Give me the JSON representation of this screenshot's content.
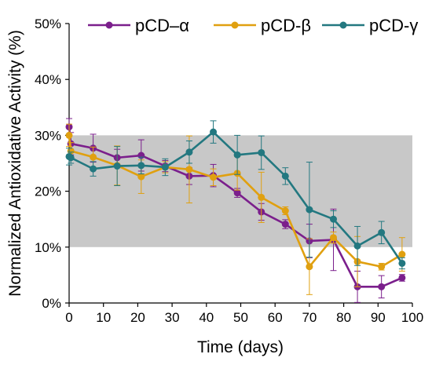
{
  "chart_data": {
    "type": "line",
    "title": "",
    "xlabel": "Time (days)",
    "ylabel": "Normalized Antioxidative Activity (%)",
    "xlim": [
      0,
      100
    ],
    "ylim": [
      0,
      50
    ],
    "x_ticks": [
      0,
      10,
      20,
      30,
      40,
      50,
      60,
      70,
      80,
      90,
      100
    ],
    "y_ticks": [
      0,
      10,
      20,
      30,
      40,
      50
    ],
    "x_tick_labels": [
      "0",
      "10",
      "20",
      "30",
      "40",
      "50",
      "60",
      "70",
      "80",
      "90",
      "100"
    ],
    "y_tick_labels": [
      "0%",
      "10%",
      "20%",
      "30%",
      "40%",
      "50%"
    ],
    "shaded_band": {
      "y0": 10,
      "y1": 30,
      "color": "#c8c8c8"
    },
    "grid": false,
    "legend_position": "top",
    "series": [
      {
        "name": "pCD–α",
        "color": "#7b1f8c",
        "points": [
          {
            "x": 0,
            "y": 31.5,
            "err": 1.5
          },
          {
            "x": 0.5,
            "y": 28.5,
            "err": 2.0
          },
          {
            "x": 7,
            "y": 27.7,
            "err": 2.5
          },
          {
            "x": 14,
            "y": 26.0,
            "err": 1.5
          },
          {
            "x": 21,
            "y": 26.4,
            "err": 2.8
          },
          {
            "x": 28,
            "y": 24.5,
            "err": 1.0
          },
          {
            "x": 35,
            "y": 22.7,
            "err": 1.5
          },
          {
            "x": 42,
            "y": 22.8,
            "err": 2.0
          },
          {
            "x": 49,
            "y": 19.7,
            "err": 0.8
          },
          {
            "x": 56,
            "y": 16.3,
            "err": 1.5
          },
          {
            "x": 63,
            "y": 14.1,
            "err": 0.8
          },
          {
            "x": 70,
            "y": 11.1,
            "err": 3.0
          },
          {
            "x": 77,
            "y": 11.3,
            "err": 5.5
          },
          {
            "x": 84,
            "y": 2.9,
            "err": 2.8
          },
          {
            "x": 91,
            "y": 2.9,
            "err": 2.0
          },
          {
            "x": 97,
            "y": 4.5,
            "err": 0.6
          }
        ]
      },
      {
        "name": "pCD-β",
        "color": "#e0a010",
        "points": [
          {
            "x": 0,
            "y": 30.0,
            "err": 2.0
          },
          {
            "x": 0.5,
            "y": 27.2,
            "err": 1.5
          },
          {
            "x": 7,
            "y": 26.1,
            "err": 1.8
          },
          {
            "x": 14,
            "y": 24.6,
            "err": 3.5
          },
          {
            "x": 21,
            "y": 22.6,
            "err": 3.0
          },
          {
            "x": 28,
            "y": 24.3,
            "err": 1.0
          },
          {
            "x": 35,
            "y": 23.9,
            "err": 6.0
          },
          {
            "x": 42,
            "y": 22.5,
            "err": 1.5
          },
          {
            "x": 49,
            "y": 23.2,
            "err": 3.0
          },
          {
            "x": 56,
            "y": 18.9,
            "err": 4.5
          },
          {
            "x": 63,
            "y": 16.5,
            "err": 0.7
          },
          {
            "x": 70,
            "y": 6.5,
            "err": 5.0
          },
          {
            "x": 77,
            "y": 11.7,
            "err": 1.0
          },
          {
            "x": 84,
            "y": 7.4,
            "err": 4.5
          },
          {
            "x": 91,
            "y": 6.5,
            "err": 0.6
          },
          {
            "x": 97,
            "y": 8.7,
            "err": 3.0
          }
        ]
      },
      {
        "name": "pCD-γ",
        "color": "#237880",
        "points": [
          {
            "x": 0,
            "y": 26.2,
            "err": 1.5
          },
          {
            "x": 0.5,
            "y": 26.0,
            "err": 1.0
          },
          {
            "x": 7,
            "y": 24.0,
            "err": 1.3
          },
          {
            "x": 14,
            "y": 24.5,
            "err": 3.5
          },
          {
            "x": 21,
            "y": 24.6,
            "err": 1.5
          },
          {
            "x": 28,
            "y": 24.3,
            "err": 1.5
          },
          {
            "x": 35,
            "y": 27.0,
            "err": 2.0
          },
          {
            "x": 42,
            "y": 30.6,
            "err": 2.0
          },
          {
            "x": 49,
            "y": 26.5,
            "err": 3.5
          },
          {
            "x": 56,
            "y": 26.9,
            "err": 3.0
          },
          {
            "x": 63,
            "y": 22.7,
            "err": 1.5
          },
          {
            "x": 70,
            "y": 16.7,
            "err": 8.5
          },
          {
            "x": 77,
            "y": 15.0,
            "err": 1.5
          },
          {
            "x": 84,
            "y": 10.2,
            "err": 3.5
          },
          {
            "x": 91,
            "y": 12.6,
            "err": 2.0
          },
          {
            "x": 97,
            "y": 7.1,
            "err": 1.0
          }
        ]
      }
    ]
  }
}
